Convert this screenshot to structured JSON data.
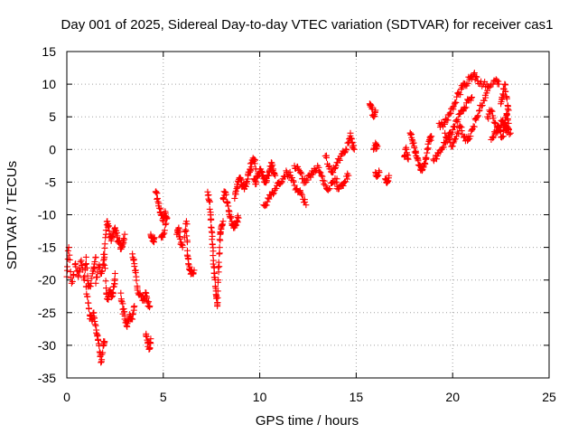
{
  "chart_data": {
    "type": "scatter",
    "title": "Day 001 of 2025, Sidereal Day-to-day VTEC variation (SDTVAR) for receiver cas1",
    "xlabel": "GPS time / hours",
    "ylabel": "SDTVAR / TECUs",
    "xlim": [
      0,
      25
    ],
    "ylim": [
      -35,
      15
    ],
    "xticks": [
      "0",
      "5",
      "10",
      "15",
      "20",
      "25"
    ],
    "yticks": [
      "-35",
      "-30",
      "-25",
      "-20",
      "-15",
      "-10",
      "-5",
      "0",
      "5",
      "10",
      "15"
    ],
    "grid": true,
    "marker": "plus",
    "series": [
      {
        "name": "SDTVAR",
        "color": "#ff0000",
        "segments": [
          [
            [
              0.0,
              -19.5
            ],
            [
              0.1,
              -15.0
            ],
            [
              0.25,
              -20.5
            ],
            [
              0.45,
              -17.5
            ],
            [
              0.6,
              -19.5
            ],
            [
              0.75,
              -17.0
            ],
            [
              0.9,
              -20.0
            ],
            [
              1.0,
              -16.5
            ],
            [
              1.1,
              -21.0
            ],
            [
              1.25,
              -20.5
            ],
            [
              1.4,
              -18.0
            ],
            [
              1.5,
              -16.5
            ]
          ],
          [
            [
              1.0,
              -21.0
            ],
            [
              1.1,
              -23.5
            ],
            [
              1.2,
              -25.5
            ],
            [
              1.3,
              -26.0
            ],
            [
              1.4,
              -25.0
            ],
            [
              1.5,
              -27.0
            ],
            [
              1.6,
              -28.5
            ],
            [
              1.7,
              -31.0
            ],
            [
              1.8,
              -32.5
            ],
            [
              1.9,
              -30.0
            ],
            [
              1.95,
              -29.5
            ]
          ],
          [
            [
              1.5,
              -20.5
            ],
            [
              1.65,
              -18.0
            ],
            [
              1.8,
              -19.0
            ],
            [
              1.95,
              -16.5
            ],
            [
              2.05,
              -22.0
            ],
            [
              2.15,
              -23.0
            ],
            [
              2.25,
              -21.5
            ],
            [
              2.35,
              -22.5
            ],
            [
              2.45,
              -21.0
            ],
            [
              2.5,
              -19.0
            ]
          ],
          [
            [
              1.9,
              -17.0
            ],
            [
              2.0,
              -13.5
            ],
            [
              2.1,
              -11.0
            ],
            [
              2.2,
              -12.5
            ],
            [
              2.3,
              -14.0
            ],
            [
              2.4,
              -13.0
            ],
            [
              2.5,
              -12.0
            ],
            [
              2.6,
              -13.5
            ],
            [
              2.7,
              -14.0
            ],
            [
              2.8,
              -15.0
            ],
            [
              2.9,
              -14.5
            ],
            [
              3.0,
              -13.0
            ]
          ],
          [
            [
              2.8,
              -22.0
            ],
            [
              2.9,
              -24.5
            ],
            [
              3.0,
              -25.5
            ],
            [
              3.1,
              -27.0
            ],
            [
              3.2,
              -26.0
            ],
            [
              3.3,
              -25.5
            ],
            [
              3.4,
              -26.0
            ],
            [
              3.5,
              -24.0
            ]
          ],
          [
            [
              3.4,
              -16.0
            ],
            [
              3.5,
              -17.5
            ],
            [
              3.6,
              -19.5
            ],
            [
              3.7,
              -22.0
            ],
            [
              3.85,
              -22.5
            ],
            [
              4.0,
              -23.0
            ],
            [
              4.1,
              -22.0
            ],
            [
              4.2,
              -23.5
            ],
            [
              4.3,
              -24.0
            ]
          ],
          [
            [
              4.1,
              -28.5
            ],
            [
              4.2,
              -29.5
            ],
            [
              4.3,
              -30.5
            ],
            [
              4.35,
              -29.0
            ]
          ],
          [
            [
              4.35,
              -13.0
            ],
            [
              4.45,
              -14.0
            ],
            [
              4.55,
              -13.5
            ]
          ],
          [
            [
              4.6,
              -6.5
            ],
            [
              4.7,
              -7.5
            ],
            [
              4.8,
              -9.0
            ],
            [
              4.9,
              -10.0
            ],
            [
              5.0,
              -11.0
            ],
            [
              5.1,
              -9.5
            ],
            [
              5.2,
              -10.5
            ],
            [
              5.0,
              -13.0
            ],
            [
              4.9,
              -13.5
            ]
          ],
          [
            [
              5.7,
              -13.0
            ],
            [
              5.8,
              -12.0
            ],
            [
              5.9,
              -14.5
            ],
            [
              6.0,
              -15.0
            ]
          ],
          [
            [
              6.1,
              -13.5
            ],
            [
              6.2,
              -11.0
            ],
            [
              6.25,
              -15.5
            ],
            [
              6.3,
              -17.5
            ],
            [
              6.4,
              -18.5
            ],
            [
              6.5,
              -19.0
            ],
            [
              6.6,
              -18.5
            ]
          ],
          [
            [
              7.3,
              -6.5
            ],
            [
              7.4,
              -8.0
            ],
            [
              7.45,
              -10.0
            ],
            [
              7.5,
              -12.0
            ],
            [
              7.55,
              -14.5
            ],
            [
              7.6,
              -17.0
            ],
            [
              7.65,
              -19.0
            ],
            [
              7.7,
              -21.0
            ],
            [
              7.75,
              -22.5
            ],
            [
              7.8,
              -24.0
            ],
            [
              7.85,
              -20.0
            ],
            [
              7.9,
              -16.0
            ],
            [
              7.95,
              -13.0
            ],
            [
              8.0,
              -12.0
            ],
            [
              8.1,
              -11.0
            ]
          ],
          [
            [
              8.1,
              -7.5
            ],
            [
              8.2,
              -6.5
            ],
            [
              8.3,
              -8.0
            ],
            [
              8.4,
              -9.5
            ],
            [
              8.5,
              -10.5
            ],
            [
              8.6,
              -11.5
            ],
            [
              8.7,
              -12.0
            ],
            [
              8.8,
              -11.0
            ],
            [
              8.9,
              -10.5
            ]
          ],
          [
            [
              8.7,
              -7.5
            ],
            [
              8.8,
              -6.0
            ],
            [
              8.9,
              -5.0
            ],
            [
              9.0,
              -4.5
            ],
            [
              9.1,
              -5.5
            ],
            [
              9.2,
              -6.0
            ],
            [
              9.3,
              -5.0
            ],
            [
              9.4,
              -4.0
            ],
            [
              9.5,
              -3.0
            ],
            [
              9.6,
              -2.0
            ],
            [
              9.7,
              -1.5
            ],
            [
              9.8,
              -3.0
            ]
          ],
          [
            [
              9.7,
              -4.5
            ],
            [
              9.8,
              -5.0
            ],
            [
              9.9,
              -4.0
            ],
            [
              10.0,
              -3.0
            ],
            [
              10.1,
              -3.5
            ],
            [
              10.2,
              -4.5
            ],
            [
              10.3,
              -5.0
            ],
            [
              10.4,
              -4.0
            ],
            [
              10.5,
              -3.5
            ],
            [
              10.6,
              -2.0
            ],
            [
              10.7,
              -3.0
            ],
            [
              10.8,
              -4.0
            ]
          ],
          [
            [
              10.2,
              -8.5
            ],
            [
              10.4,
              -8.0
            ],
            [
              10.6,
              -7.0
            ],
            [
              10.8,
              -6.0
            ],
            [
              11.0,
              -5.0
            ],
            [
              11.2,
              -4.5
            ],
            [
              11.4,
              -3.5
            ],
            [
              11.6,
              -4.0
            ],
            [
              11.8,
              -5.5
            ],
            [
              12.0,
              -6.5
            ],
            [
              12.2,
              -7.0
            ],
            [
              12.4,
              -8.5
            ]
          ],
          [
            [
              11.8,
              -2.5
            ],
            [
              12.0,
              -3.0
            ],
            [
              12.2,
              -4.5
            ],
            [
              12.4,
              -5.0
            ],
            [
              12.6,
              -4.0
            ],
            [
              12.8,
              -3.5
            ],
            [
              13.0,
              -2.5
            ],
            [
              13.2,
              -4.0
            ],
            [
              13.4,
              -5.5
            ],
            [
              13.6,
              -6.0
            ],
            [
              13.8,
              -5.0
            ],
            [
              14.0,
              -4.5
            ]
          ],
          [
            [
              13.4,
              -1.0
            ],
            [
              13.6,
              -2.5
            ],
            [
              13.8,
              -3.5
            ],
            [
              14.0,
              -2.0
            ],
            [
              14.2,
              -1.0
            ],
            [
              14.4,
              -0.5
            ],
            [
              14.6,
              1.0
            ],
            [
              14.7,
              2.5
            ],
            [
              14.8,
              1.0
            ],
            [
              14.9,
              0.0
            ]
          ],
          [
            [
              14.0,
              -6.0
            ],
            [
              14.2,
              -5.5
            ],
            [
              14.4,
              -5.0
            ],
            [
              14.6,
              -4.0
            ]
          ],
          [
            [
              15.7,
              7.0
            ],
            [
              15.8,
              6.5
            ],
            [
              15.9,
              5.0
            ],
            [
              16.0,
              6.0
            ]
          ],
          [
            [
              16.0,
              -3.5
            ],
            [
              16.1,
              -4.0
            ],
            [
              16.2,
              -3.5
            ]
          ],
          [
            [
              16.0,
              1.0
            ],
            [
              16.1,
              0.5
            ],
            [
              15.9,
              0.0
            ]
          ],
          [
            [
              16.5,
              -4.5
            ],
            [
              16.6,
              -5.0
            ],
            [
              16.7,
              -4.0
            ]
          ],
          [
            [
              17.5,
              -1.0
            ],
            [
              17.6,
              0.0
            ],
            [
              17.7,
              -1.5
            ]
          ],
          [
            [
              17.8,
              2.5
            ],
            [
              17.9,
              1.5
            ],
            [
              18.0,
              0.5
            ],
            [
              18.1,
              -0.5
            ],
            [
              18.2,
              -1.5
            ],
            [
              18.3,
              -2.5
            ],
            [
              18.4,
              -3.0
            ],
            [
              18.5,
              -2.5
            ],
            [
              18.6,
              -1.5
            ],
            [
              18.7,
              0.0
            ],
            [
              18.8,
              1.5
            ],
            [
              18.9,
              2.0
            ]
          ],
          [
            [
              19.0,
              -1.5
            ],
            [
              19.2,
              -1.0
            ],
            [
              19.4,
              0.0
            ],
            [
              19.6,
              1.0
            ],
            [
              19.8,
              2.0
            ],
            [
              20.0,
              3.0
            ],
            [
              20.2,
              4.5
            ],
            [
              20.4,
              5.5
            ],
            [
              20.6,
              6.5
            ],
            [
              20.8,
              7.5
            ],
            [
              21.0,
              8.0
            ]
          ],
          [
            [
              19.3,
              4.0
            ],
            [
              19.5,
              3.5
            ],
            [
              19.7,
              4.5
            ],
            [
              19.9,
              5.5
            ],
            [
              20.1,
              7.0
            ],
            [
              20.3,
              8.5
            ],
            [
              20.5,
              9.5
            ],
            [
              20.7,
              10.0
            ],
            [
              20.9,
              11.0
            ],
            [
              21.1,
              11.5
            ],
            [
              21.3,
              10.5
            ]
          ],
          [
            [
              19.6,
              2.5
            ],
            [
              19.8,
              1.5
            ],
            [
              20.0,
              0.5
            ],
            [
              20.2,
              2.0
            ],
            [
              20.4,
              3.5
            ],
            [
              20.6,
              2.0
            ],
            [
              20.8,
              1.5
            ],
            [
              21.0,
              3.0
            ],
            [
              21.2,
              4.5
            ],
            [
              21.4,
              6.0
            ],
            [
              21.6,
              7.5
            ],
            [
              21.8,
              9.0
            ]
          ],
          [
            [
              21.3,
              10.5
            ],
            [
              21.6,
              10.0
            ],
            [
              21.9,
              9.5
            ],
            [
              22.2,
              10.5
            ],
            [
              22.4,
              10.0
            ]
          ],
          [
            [
              21.8,
              5.0
            ],
            [
              22.0,
              6.0
            ],
            [
              22.2,
              4.0
            ],
            [
              22.4,
              3.0
            ],
            [
              22.6,
              2.0
            ],
            [
              22.7,
              4.0
            ],
            [
              22.8,
              5.5
            ],
            [
              22.9,
              4.0
            ],
            [
              22.7,
              3.0
            ]
          ],
          [
            [
              22.5,
              7.0
            ],
            [
              22.6,
              8.5
            ],
            [
              22.7,
              10.0
            ],
            [
              22.8,
              8.0
            ],
            [
              22.9,
              6.0
            ]
          ],
          [
            [
              22.0,
              1.5
            ],
            [
              22.2,
              2.5
            ],
            [
              22.4,
              3.5
            ],
            [
              22.6,
              4.5
            ],
            [
              22.8,
              3.0
            ],
            [
              23.0,
              2.5
            ]
          ]
        ]
      }
    ]
  }
}
